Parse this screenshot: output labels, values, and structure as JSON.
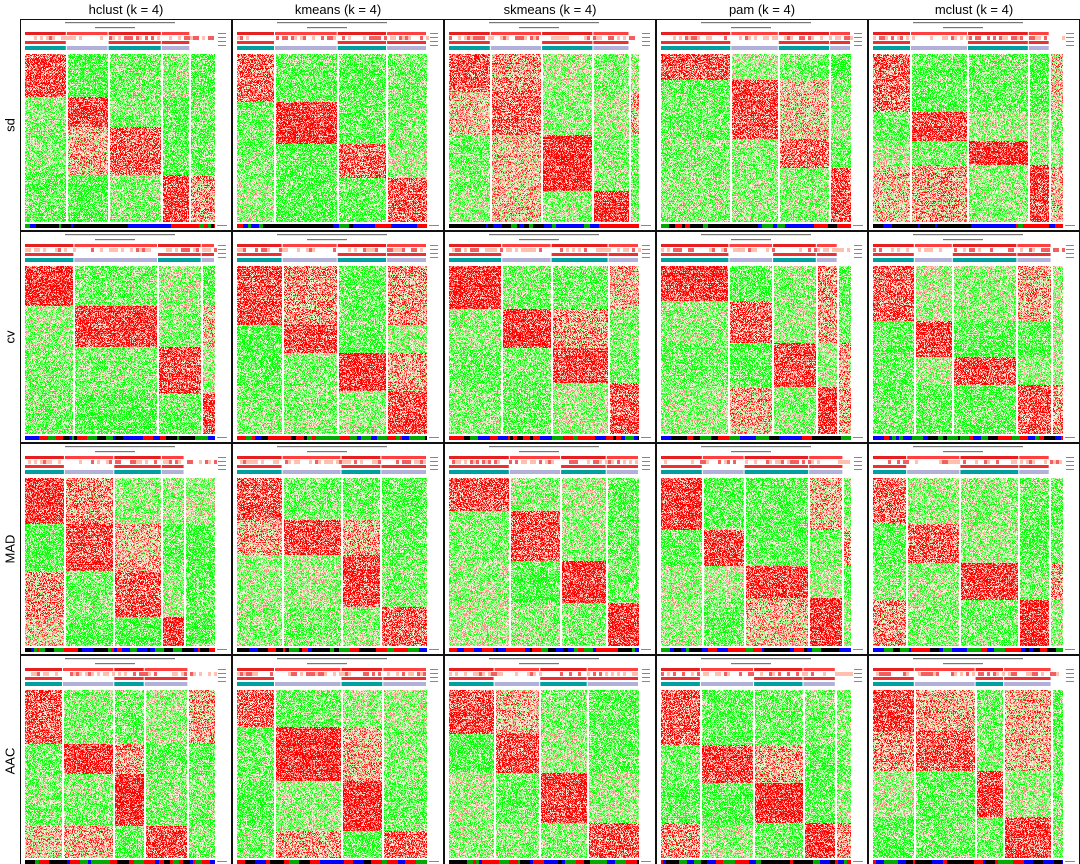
{
  "chart_data": {
    "type": "heatmap",
    "description_free": true,
    "columns": [
      {
        "key": "hclust",
        "title": "hclust (k = 4)"
      },
      {
        "key": "kmeans",
        "title": "kmeans (k = 4)"
      },
      {
        "key": "skmeans",
        "title": "skmeans (k = 4)"
      },
      {
        "key": "pam",
        "title": "pam (k = 4)"
      },
      {
        "key": "mclust",
        "title": "mclust (k = 4)"
      }
    ],
    "rows": [
      {
        "key": "sd",
        "label": "sd"
      },
      {
        "key": "cv",
        "label": "cv"
      },
      {
        "key": "MAD",
        "label": "MAD"
      },
      {
        "key": "AAC",
        "label": "AAC"
      }
    ],
    "colors": {
      "high": "#ff0000",
      "mid": "#fffbe8",
      "low": "#00ff00",
      "class_1": "#00a0a0",
      "class_2": "#ff8080",
      "group_blue": "#0000ff",
      "group_black": "#000000",
      "group_green": "#00aa00",
      "group_red": "#ff0000",
      "border": "#111111"
    },
    "panel_blocks": [
      [
        [
          0.22,
          0.44,
          0.72,
          0.87
        ],
        [
          0.2,
          0.53,
          0.79,
          1.0
        ],
        [
          0.22,
          0.49,
          0.76,
          0.95
        ],
        [
          0.37,
          0.62,
          0.89,
          1.0
        ],
        [
          0.2,
          0.5,
          0.82,
          0.93
        ]
      ],
      [
        [
          0.26,
          0.7,
          0.93,
          1.0
        ],
        [
          0.24,
          0.53,
          0.79,
          1.0
        ],
        [
          0.28,
          0.54,
          0.84,
          1.0
        ],
        [
          0.36,
          0.59,
          0.82,
          0.93
        ],
        [
          0.22,
          0.42,
          0.76,
          0.94
        ]
      ],
      [
        [
          0.21,
          0.47,
          0.72,
          0.84
        ],
        [
          0.24,
          0.55,
          0.76,
          1.0
        ],
        [
          0.32,
          0.59,
          0.83,
          1.0
        ],
        [
          0.22,
          0.44,
          0.78,
          0.96
        ],
        [
          0.18,
          0.46,
          0.77,
          0.93
        ]
      ],
      [
        [
          0.2,
          0.47,
          0.63,
          0.86
        ],
        [
          0.2,
          0.55,
          0.77,
          1.0
        ],
        [
          0.24,
          0.48,
          0.73,
          1.0
        ],
        [
          0.21,
          0.49,
          0.75,
          0.92
        ],
        [
          0.22,
          0.54,
          0.69,
          0.94
        ]
      ]
    ]
  }
}
